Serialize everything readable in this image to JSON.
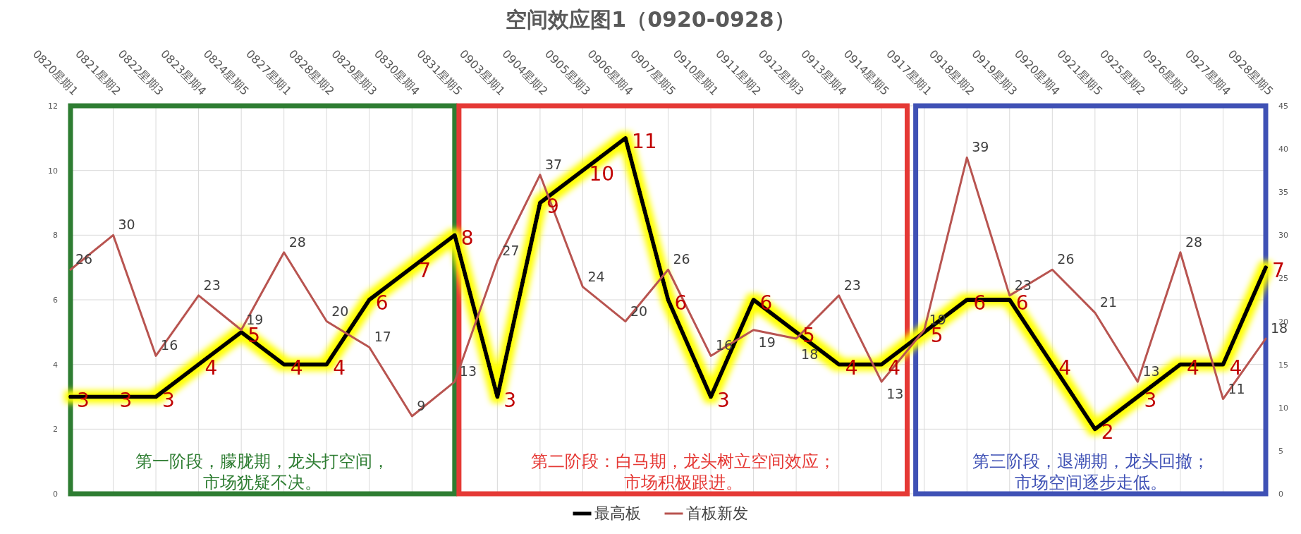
{
  "chart_data": {
    "type": "line",
    "title": "空间效应图1（0920-0928）",
    "categories": [
      "0820星期1",
      "0821星期2",
      "0822星期3",
      "0823星期4",
      "0824星期5",
      "0827星期1",
      "0828星期2",
      "0829星期3",
      "0830星期4",
      "0831星期5",
      "0903星期1",
      "0904星期2",
      "0905星期3",
      "0906星期4",
      "0907星期5",
      "0910星期1",
      "0911星期2",
      "0912星期3",
      "0913星期4",
      "0914星期5",
      "0917星期1",
      "0918星期2",
      "0919星期3",
      "0920星期4",
      "0921星期5",
      "0925星期2",
      "0926星期3",
      "0927星期4",
      "0928星期5"
    ],
    "series": [
      {
        "name": "最高板",
        "color": "#000000",
        "values": [
          3,
          3,
          3,
          4,
          5,
          4,
          4,
          6,
          7,
          8,
          3,
          9,
          10,
          11,
          6,
          3,
          6,
          5,
          4,
          4,
          5,
          6,
          6,
          4,
          2,
          3,
          4,
          4,
          7
        ]
      },
      {
        "name": "首板新发",
        "color": "#b85450",
        "axis": "y2",
        "values": [
          26,
          30,
          16,
          23,
          19,
          28,
          20,
          17,
          9,
          13,
          27,
          37,
          24,
          20,
          26,
          16,
          19,
          18,
          23,
          13,
          19,
          39,
          23,
          26,
          21,
          13,
          28,
          11,
          18
        ]
      }
    ],
    "ylim": [
      0,
      12
    ],
    "yticks": [
      0,
      2,
      4,
      6,
      8,
      10,
      12
    ],
    "y2lim": [
      0,
      45
    ],
    "y2ticks": [
      0,
      5,
      10,
      15,
      20,
      25,
      30,
      35,
      40,
      45
    ],
    "annotations": [
      "第一阶段，朦胧期，龙头打空间，市场犹疑不决。",
      "第二阶段：白马期，龙头树立空间效应；市场积极跟进。",
      "第三阶段，退潮期，龙头回撤；市场空间逐步走低。"
    ],
    "data_labels": true,
    "grid": true,
    "legend": "bottom",
    "marker": "none",
    "line_style": "solid"
  }
}
